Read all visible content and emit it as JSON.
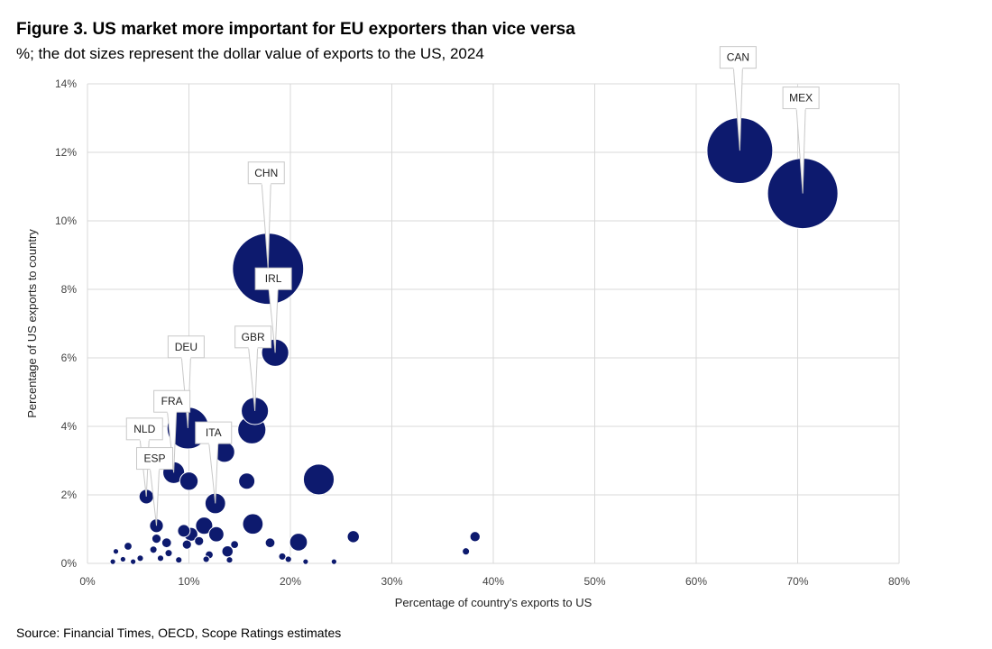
{
  "header": {
    "title": "Figure 3. US market more important for EU exporters than vice versa",
    "subtitle": "%; the dot sizes represent the dollar value of exports to the US, 2024"
  },
  "footer": {
    "source": "Source: Financial Times, OECD, Scope Ratings estimates"
  },
  "colors": {
    "bubble": "#0d1a6e",
    "grid": "#d9d9d9",
    "callout_border": "#c8c8c8"
  },
  "chart_data": {
    "type": "scatter",
    "title": "Figure 3. US market more important for EU exporters than vice versa",
    "subtitle": "%; the dot sizes represent the dollar value of exports to the US, 2024",
    "xlabel": "Percentage of country's exports to US",
    "ylabel": "Percentage of US exports to country",
    "xlim": [
      0,
      80
    ],
    "ylim": [
      0,
      14
    ],
    "x_ticks": [
      0,
      10,
      20,
      30,
      40,
      50,
      60,
      70,
      80
    ],
    "y_ticks": [
      0,
      2,
      4,
      6,
      8,
      10,
      12,
      14
    ],
    "x_tick_labels": [
      "0%",
      "10%",
      "20%",
      "30%",
      "40%",
      "50%",
      "60%",
      "70%",
      "80%"
    ],
    "y_tick_labels": [
      "0%",
      "2%",
      "4%",
      "6%",
      "8%",
      "10%",
      "12%",
      "14%"
    ],
    "grid": true,
    "size_encoding": "dollar value of exports to the US",
    "points": [
      {
        "label": "CAN",
        "x": 64.3,
        "y": 12.05,
        "size": 410
      },
      {
        "label": "MEX",
        "x": 70.5,
        "y": 10.8,
        "size": 470
      },
      {
        "label": "CHN",
        "x": 17.8,
        "y": 8.6,
        "size": 480
      },
      {
        "label": "IRL",
        "x": 18.5,
        "y": 6.15,
        "size": 70
      },
      {
        "label": "DEU",
        "x": 9.9,
        "y": 3.95,
        "size": 165
      },
      {
        "label": "GBR",
        "x": 16.5,
        "y": 4.45,
        "size": 70
      },
      {
        "label": "",
        "x": 16.2,
        "y": 3.9,
        "size": 75
      },
      {
        "label": "",
        "x": 13.5,
        "y": 3.25,
        "size": 40
      },
      {
        "label": "",
        "x": 22.8,
        "y": 2.45,
        "size": 90
      },
      {
        "label": "FRA",
        "x": 8.5,
        "y": 2.65,
        "size": 45
      },
      {
        "label": "",
        "x": 10.0,
        "y": 2.4,
        "size": 32
      },
      {
        "label": "",
        "x": 15.7,
        "y": 2.4,
        "size": 25
      },
      {
        "label": "NLD",
        "x": 5.8,
        "y": 1.95,
        "size": 20
      },
      {
        "label": "ITA",
        "x": 12.6,
        "y": 1.75,
        "size": 40
      },
      {
        "label": "ESP",
        "x": 6.8,
        "y": 1.1,
        "size": 18
      },
      {
        "label": "",
        "x": 16.3,
        "y": 1.15,
        "size": 40
      },
      {
        "label": "",
        "x": 11.5,
        "y": 1.1,
        "size": 28
      },
      {
        "label": "",
        "x": 12.7,
        "y": 0.85,
        "size": 22
      },
      {
        "label": "",
        "x": 9.5,
        "y": 0.95,
        "size": 15
      },
      {
        "label": "",
        "x": 10.2,
        "y": 0.85,
        "size": 18
      },
      {
        "label": "",
        "x": 20.8,
        "y": 0.62,
        "size": 30
      },
      {
        "label": "",
        "x": 26.2,
        "y": 0.78,
        "size": 14
      },
      {
        "label": "",
        "x": 38.2,
        "y": 0.78,
        "size": 10
      },
      {
        "label": "",
        "x": 37.3,
        "y": 0.35,
        "size": 5
      },
      {
        "label": "",
        "x": 18.0,
        "y": 0.6,
        "size": 9
      },
      {
        "label": "",
        "x": 7.8,
        "y": 0.6,
        "size": 9
      },
      {
        "label": "",
        "x": 6.8,
        "y": 0.72,
        "size": 8
      },
      {
        "label": "",
        "x": 9.8,
        "y": 0.55,
        "size": 8
      },
      {
        "label": "",
        "x": 11.0,
        "y": 0.65,
        "size": 8
      },
      {
        "label": "",
        "x": 13.8,
        "y": 0.35,
        "size": 12
      },
      {
        "label": "",
        "x": 14.5,
        "y": 0.55,
        "size": 6
      },
      {
        "label": "",
        "x": 12.0,
        "y": 0.25,
        "size": 6
      },
      {
        "label": "",
        "x": 4.0,
        "y": 0.5,
        "size": 6
      },
      {
        "label": "",
        "x": 6.5,
        "y": 0.4,
        "size": 5
      },
      {
        "label": "",
        "x": 8.0,
        "y": 0.3,
        "size": 5
      },
      {
        "label": "",
        "x": 5.2,
        "y": 0.15,
        "size": 4
      },
      {
        "label": "",
        "x": 2.8,
        "y": 0.35,
        "size": 3
      },
      {
        "label": "",
        "x": 3.5,
        "y": 0.12,
        "size": 3
      },
      {
        "label": "",
        "x": 7.2,
        "y": 0.15,
        "size": 4
      },
      {
        "label": "",
        "x": 19.2,
        "y": 0.2,
        "size": 5
      },
      {
        "label": "",
        "x": 19.8,
        "y": 0.12,
        "size": 4
      },
      {
        "label": "",
        "x": 11.7,
        "y": 0.12,
        "size": 4
      },
      {
        "label": "",
        "x": 24.3,
        "y": 0.05,
        "size": 3
      },
      {
        "label": "",
        "x": 2.5,
        "y": 0.05,
        "size": 3
      },
      {
        "label": "",
        "x": 4.5,
        "y": 0.05,
        "size": 3
      },
      {
        "label": "",
        "x": 9.0,
        "y": 0.1,
        "size": 4
      },
      {
        "label": "",
        "x": 14.0,
        "y": 0.1,
        "size": 4
      },
      {
        "label": "",
        "x": 21.5,
        "y": 0.05,
        "size": 3
      }
    ]
  }
}
